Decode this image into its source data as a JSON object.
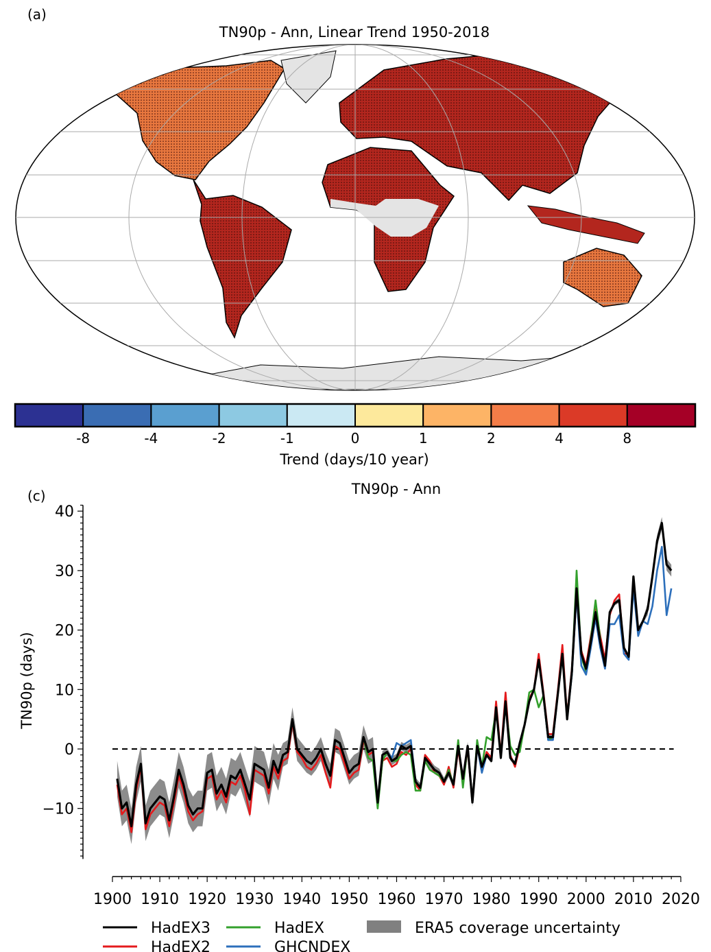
{
  "panel_a": {
    "label": "(a)",
    "title": "TN90p - Ann, Linear Trend 1950-2018",
    "colorbar": {
      "colors": [
        "#2c3192",
        "#3a6db3",
        "#5a9fd0",
        "#8dc9e2",
        "#cbe9f3",
        "#fde99c",
        "#fdb466",
        "#f47d48",
        "#db3a27",
        "#a50026"
      ],
      "tick_labels": [
        "-8",
        "-4",
        "-2",
        "-1",
        "0",
        "1",
        "2",
        "4",
        "8"
      ],
      "label": "Trend (days/10 year)"
    },
    "land_colors": {
      "strong": "#b3261e",
      "moderate": "#e8773e",
      "no_data": "#e4e4e4"
    }
  },
  "chart_data": {
    "type": "line",
    "panel_label": "(c)",
    "title": "TN90p - Ann",
    "xlabel": "",
    "ylabel": "TN90p (days)",
    "xlim": [
      1900,
      2020
    ],
    "ylim": [
      -18.5,
      41
    ],
    "xticks": [
      "1900",
      "1910",
      "1920",
      "1930",
      "1940",
      "1950",
      "1960",
      "1970",
      "1980",
      "1990",
      "2000",
      "2010",
      "2020"
    ],
    "yticks": [
      "−10",
      "0",
      "10",
      "20",
      "30",
      "40"
    ],
    "ytick_values": [
      -10,
      0,
      10,
      20,
      30,
      40
    ],
    "reference_line": 0,
    "legend_placement": "bottom",
    "series": [
      {
        "name": "HadEX2",
        "color": "#e41a1c",
        "start": 1901,
        "values": [
          -6,
          -11,
          -10,
          -14,
          -7,
          -3,
          -13.5,
          -11,
          -10,
          -9,
          -9.5,
          -13,
          -9,
          -4.5,
          -7,
          -10.5,
          -12,
          -11,
          -10.5,
          -5,
          -4.5,
          -8.5,
          -7,
          -9,
          -5.5,
          -6,
          -4.5,
          -7,
          -11,
          -3.5,
          -4,
          -4.5,
          -7.5,
          -3,
          -5,
          -2,
          -1.5,
          4.5,
          -0.5,
          -1.5,
          -3,
          -3.5,
          -2.5,
          -1,
          -4,
          -6.5,
          0.5,
          0,
          -2.5,
          -5,
          -4,
          -3.5,
          1.5,
          -1,
          -0.5,
          -9.5,
          -2,
          -1.5,
          -3,
          -2.5,
          -0.5,
          -1,
          0,
          -6,
          -7,
          -1,
          -2,
          -4,
          -4.5,
          -6,
          -3,
          -6.5,
          0,
          -5.5,
          0,
          -9,
          1,
          -3.5,
          -0.5,
          -1.5,
          8,
          -1,
          9.5,
          -1,
          -3,
          0.5,
          4,
          8.5,
          10,
          16,
          9.5,
          2.5,
          2.5,
          9.5,
          17.5,
          5.5,
          13.5,
          26,
          16.5,
          14,
          19,
          23.5,
          19,
          15,
          22.5,
          25,
          26,
          16,
          16
        ]
      },
      {
        "name": "HadEX",
        "color": "#33a02c",
        "start": 1951,
        "values": [
          -3,
          -2.5,
          2,
          -1.5,
          -2,
          -10,
          -2,
          -0.5,
          -2,
          -2,
          -1,
          -0.5,
          -1,
          -7,
          -7,
          -2,
          -3.5,
          -4,
          -4.5,
          -5.5,
          -3.5,
          -6,
          1.5,
          -6.5,
          0.5,
          -9,
          1.5,
          -3,
          2,
          1.5,
          6.5,
          -1,
          7.5,
          0.5,
          -1,
          -0.5,
          4,
          9.5,
          10,
          7,
          9,
          1.5,
          2,
          9,
          16,
          5.5,
          12.5,
          30,
          15.5,
          13,
          18.5,
          25,
          18.5
        ]
      },
      {
        "name": "GHCNDEX",
        "color": "#2c6fbb",
        "start": 1951,
        "values": [
          -3,
          -2.5,
          2,
          -0.5,
          0,
          -9,
          -1,
          -0.5,
          -1.5,
          1,
          0.5,
          1,
          1.5,
          -5.5,
          -6.5,
          -1.5,
          -2.5,
          -3.5,
          -4,
          -5.5,
          -4,
          -6,
          0.5,
          -5,
          0.5,
          -9,
          0.5,
          -4,
          -1,
          -2,
          7,
          -1.5,
          8,
          -1.5,
          -2.5,
          1,
          4,
          8,
          10,
          15,
          9,
          1.5,
          1.5,
          9,
          16,
          5,
          12.5,
          26,
          14,
          12.5,
          17,
          22,
          17,
          13.5,
          21,
          21,
          22.5,
          16,
          15,
          27,
          19,
          21.5,
          21,
          24,
          30,
          34,
          22.5,
          27
        ]
      },
      {
        "name": "HadEX3",
        "color": "#000000",
        "start": 1901,
        "values": [
          -5,
          -10,
          -9,
          -13,
          -6,
          -2.5,
          -12.5,
          -10,
          -9,
          -8,
          -8.5,
          -12,
          -8,
          -3.5,
          -6,
          -9.5,
          -11,
          -10,
          -10,
          -4,
          -3.5,
          -7.5,
          -6,
          -8,
          -4.5,
          -5,
          -3.5,
          -6,
          -8.5,
          -2.5,
          -3,
          -3.5,
          -6.5,
          -2,
          -4,
          -1,
          -0.5,
          5,
          0,
          -1,
          -2,
          -2.5,
          -1.5,
          0,
          -2.5,
          -4.5,
          1.5,
          1,
          -1.5,
          -4,
          -3,
          -2.5,
          2,
          -0.5,
          0,
          -9,
          -1,
          -0.5,
          -2,
          -1.5,
          0.5,
          0,
          0.5,
          -5.5,
          -6.5,
          -1.5,
          -2.5,
          -3.5,
          -4,
          -5.5,
          -4,
          -6,
          0.5,
          -5,
          0.5,
          -9,
          0.5,
          -3,
          -1,
          -2,
          7,
          -1.5,
          8,
          -1.5,
          -2.5,
          1,
          4,
          8,
          10,
          15,
          9,
          2,
          2,
          9,
          16,
          5,
          13,
          27,
          16,
          13.5,
          18,
          23,
          18,
          14,
          23,
          24.5,
          25,
          17,
          15.5,
          29,
          20,
          21.5,
          23.5,
          29,
          35,
          38,
          31,
          30
        ]
      },
      {
        "name": "ERA5 coverage uncertainty",
        "color": "#808080",
        "type": "band",
        "applies_to": "HadEX3",
        "halfwidth_segments": [
          {
            "from": 1901,
            "to": 1935,
            "value": 3
          },
          {
            "from": 1936,
            "to": 1955,
            "value": 2
          },
          {
            "from": 1956,
            "to": 1978,
            "value": 0.7
          },
          {
            "from": 1979,
            "to": 2012,
            "value": 0.4
          },
          {
            "from": 2013,
            "to": 2018,
            "value": 1
          }
        ]
      }
    ],
    "legend": [
      "HadEX3",
      "HadEX2",
      "HadEX",
      "GHCNDEX",
      "ERA5 coverage uncertainty"
    ]
  }
}
